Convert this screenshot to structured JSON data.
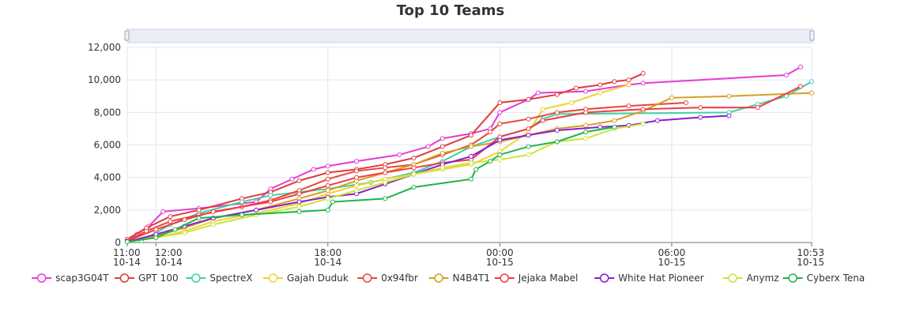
{
  "chart_data": {
    "type": "line",
    "title": "Top 10 Teams",
    "xlabel": "",
    "ylabel": "",
    "x_type": "time",
    "x_range": [
      "2024-10-14 11:00",
      "2024-10-15 10:53"
    ],
    "ylim": [
      0,
      12000
    ],
    "y_ticks": [
      0,
      2000,
      4000,
      6000,
      8000,
      10000,
      12000
    ],
    "y_tick_labels": [
      "0",
      "2,000",
      "4,000",
      "6,000",
      "8,000",
      "10,000",
      "12,000"
    ],
    "x_ticks": [
      {
        "x": "2024-10-14 11:00",
        "label1": "11:00",
        "label2": "10-14"
      },
      {
        "x": "2024-10-14 12:00",
        "label1": "12:00",
        "label2": "10-14"
      },
      {
        "x": "2024-10-14 18:00",
        "label1": "18:00",
        "label2": "10-14"
      },
      {
        "x": "2024-10-15 00:00",
        "label1": "00:00",
        "label2": "10-15"
      },
      {
        "x": "2024-10-15 06:00",
        "label1": "06:00",
        "label2": "10-15"
      },
      {
        "x": "2024-10-15 10:53",
        "label1": "10:53",
        "label2": "10-15"
      }
    ],
    "grid": true,
    "legend_position": "bottom",
    "data_zoom_slider": true,
    "series": [
      {
        "name": "scap3G04T",
        "color": "#e63cd2",
        "points": [
          [
            "2024-10-14 11:00",
            100
          ],
          [
            "2024-10-14 11:20",
            500
          ],
          [
            "2024-10-14 11:45",
            1000
          ],
          [
            "2024-10-14 12:15",
            1900
          ],
          [
            "2024-10-14 13:30",
            2100
          ],
          [
            "2024-10-14 15:30",
            2500
          ],
          [
            "2024-10-14 16:00",
            3300
          ],
          [
            "2024-10-14 16:45",
            3900
          ],
          [
            "2024-10-14 17:30",
            4500
          ],
          [
            "2024-10-14 18:00",
            4700
          ],
          [
            "2024-10-14 19:00",
            5000
          ],
          [
            "2024-10-14 20:30",
            5400
          ],
          [
            "2024-10-14 21:30",
            5900
          ],
          [
            "2024-10-14 22:00",
            6400
          ],
          [
            "2024-10-14 23:00",
            6700
          ],
          [
            "2024-10-14 23:40",
            7000
          ],
          [
            "2024-10-15 00:00",
            8000
          ],
          [
            "2024-10-15 01:00",
            8800
          ],
          [
            "2024-10-15 01:20",
            9200
          ],
          [
            "2024-10-15 03:00",
            9300
          ],
          [
            "2024-10-15 04:30",
            9700
          ],
          [
            "2024-10-15 05:00",
            9800
          ],
          [
            "2024-10-15 10:00",
            10300
          ],
          [
            "2024-10-15 10:30",
            10800
          ]
        ]
      },
      {
        "name": "GPT 100",
        "color": "#dc3c3c",
        "points": [
          [
            "2024-10-14 11:00",
            200
          ],
          [
            "2024-10-14 11:40",
            900
          ],
          [
            "2024-10-14 12:30",
            1600
          ],
          [
            "2024-10-14 13:30",
            2000
          ],
          [
            "2024-10-14 15:00",
            2700
          ],
          [
            "2024-10-14 16:00",
            3100
          ],
          [
            "2024-10-14 17:00",
            3800
          ],
          [
            "2024-10-14 18:00",
            4300
          ],
          [
            "2024-10-14 19:00",
            4500
          ],
          [
            "2024-10-14 20:00",
            4800
          ],
          [
            "2024-10-14 21:00",
            5200
          ],
          [
            "2024-10-14 22:00",
            5900
          ],
          [
            "2024-10-14 23:00",
            6600
          ],
          [
            "2024-10-15 00:00",
            8600
          ],
          [
            "2024-10-15 01:00",
            8800
          ],
          [
            "2024-10-15 02:00",
            9100
          ],
          [
            "2024-10-15 02:40",
            9500
          ],
          [
            "2024-10-15 03:30",
            9700
          ],
          [
            "2024-10-15 04:00",
            9900
          ],
          [
            "2024-10-15 04:30",
            10000
          ],
          [
            "2024-10-15 05:00",
            10400
          ]
        ]
      },
      {
        "name": "SpectreX",
        "color": "#3cd2a5",
        "points": [
          [
            "2024-10-14 11:30",
            100
          ],
          [
            "2024-10-14 12:00",
            600
          ],
          [
            "2024-10-14 12:30",
            1100
          ],
          [
            "2024-10-14 13:30",
            1800
          ],
          [
            "2024-10-14 15:00",
            2500
          ],
          [
            "2024-10-14 16:00",
            2900
          ],
          [
            "2024-10-14 17:00",
            3100
          ],
          [
            "2024-10-14 18:00",
            3300
          ],
          [
            "2024-10-14 19:30",
            3700
          ],
          [
            "2024-10-14 21:00",
            4300
          ],
          [
            "2024-10-14 22:00",
            5000
          ],
          [
            "2024-10-14 23:00",
            5900
          ],
          [
            "2024-10-15 00:00",
            6500
          ],
          [
            "2024-10-15 01:00",
            7000
          ],
          [
            "2024-10-15 01:30",
            7600
          ],
          [
            "2024-10-15 02:00",
            7900
          ],
          [
            "2024-10-15 08:00",
            8000
          ],
          [
            "2024-10-15 09:00",
            8500
          ],
          [
            "2024-10-15 10:00",
            9000
          ],
          [
            "2024-10-15 10:53",
            9900
          ]
        ]
      },
      {
        "name": "Gajah Duduk",
        "color": "#f0d232",
        "points": [
          [
            "2024-10-14 11:00",
            50
          ],
          [
            "2024-10-14 12:00",
            300
          ],
          [
            "2024-10-14 13:00",
            700
          ],
          [
            "2024-10-14 14:00",
            1300
          ],
          [
            "2024-10-14 15:30",
            1800
          ],
          [
            "2024-10-14 17:00",
            2400
          ],
          [
            "2024-10-14 18:00",
            3000
          ],
          [
            "2024-10-14 19:00",
            3500
          ],
          [
            "2024-10-14 20:00",
            3900
          ],
          [
            "2024-10-14 21:00",
            4200
          ],
          [
            "2024-10-14 22:00",
            4500
          ],
          [
            "2024-10-14 23:00",
            4800
          ],
          [
            "2024-10-15 00:00",
            5600
          ],
          [
            "2024-10-15 01:00",
            6800
          ],
          [
            "2024-10-15 01:30",
            8200
          ],
          [
            "2024-10-15 02:30",
            8600
          ],
          [
            "2024-10-15 03:30",
            9200
          ],
          [
            "2024-10-15 04:30",
            9700
          ]
        ]
      },
      {
        "name": "0x94fbr",
        "color": "#e6463c",
        "points": [
          [
            "2024-10-14 11:00",
            100
          ],
          [
            "2024-10-14 11:40",
            700
          ],
          [
            "2024-10-14 12:30",
            1300
          ],
          [
            "2024-10-14 13:30",
            1700
          ],
          [
            "2024-10-14 15:00",
            2200
          ],
          [
            "2024-10-14 16:00",
            2600
          ],
          [
            "2024-10-14 17:00",
            3200
          ],
          [
            "2024-10-14 18:00",
            3900
          ],
          [
            "2024-10-14 19:00",
            4400
          ],
          [
            "2024-10-14 20:00",
            4600
          ],
          [
            "2024-10-14 21:00",
            4800
          ],
          [
            "2024-10-14 22:00",
            5400
          ],
          [
            "2024-10-14 23:00",
            6000
          ],
          [
            "2024-10-14 23:40",
            6800
          ],
          [
            "2024-10-15 00:00",
            7300
          ],
          [
            "2024-10-15 01:00",
            7600
          ],
          [
            "2024-10-15 02:00",
            8000
          ],
          [
            "2024-10-15 03:00",
            8200
          ],
          [
            "2024-10-15 04:30",
            8400
          ],
          [
            "2024-10-15 06:30",
            8600
          ]
        ]
      },
      {
        "name": "N4B4T1",
        "color": "#d4a020",
        "points": [
          [
            "2024-10-14 11:00",
            50
          ],
          [
            "2024-10-14 12:00",
            400
          ],
          [
            "2024-10-14 13:00",
            900
          ],
          [
            "2024-10-14 14:00",
            1500
          ],
          [
            "2024-10-14 15:30",
            2000
          ],
          [
            "2024-10-14 17:00",
            2700
          ],
          [
            "2024-10-14 18:00",
            3200
          ],
          [
            "2024-10-14 19:00",
            3800
          ],
          [
            "2024-10-14 20:00",
            4300
          ],
          [
            "2024-10-14 21:00",
            4800
          ],
          [
            "2024-10-14 22:00",
            5500
          ],
          [
            "2024-10-14 23:00",
            5900
          ],
          [
            "2024-10-15 00:00",
            6200
          ],
          [
            "2024-10-15 01:00",
            6600
          ],
          [
            "2024-10-15 02:00",
            7000
          ],
          [
            "2024-10-15 03:00",
            7200
          ],
          [
            "2024-10-15 04:00",
            7500
          ],
          [
            "2024-10-15 05:00",
            8100
          ],
          [
            "2024-10-15 06:00",
            8900
          ],
          [
            "2024-10-15 08:00",
            9000
          ],
          [
            "2024-10-15 10:53",
            9200
          ]
        ]
      },
      {
        "name": "Jejaka Mabel",
        "color": "#f03c46",
        "points": [
          [
            "2024-10-14 11:00",
            100
          ],
          [
            "2024-10-14 12:00",
            800
          ],
          [
            "2024-10-14 13:00",
            1400
          ],
          [
            "2024-10-14 14:00",
            1900
          ],
          [
            "2024-10-14 16:00",
            2500
          ],
          [
            "2024-10-14 17:00",
            3000
          ],
          [
            "2024-10-14 18:00",
            3500
          ],
          [
            "2024-10-14 19:00",
            4000
          ],
          [
            "2024-10-14 20:00",
            4300
          ],
          [
            "2024-10-14 21:00",
            4600
          ],
          [
            "2024-10-14 22:00",
            4900
          ],
          [
            "2024-10-14 23:00",
            5100
          ],
          [
            "2024-10-15 00:00",
            6500
          ],
          [
            "2024-10-15 01:00",
            7000
          ],
          [
            "2024-10-15 01:30",
            7500
          ],
          [
            "2024-10-15 03:00",
            8000
          ],
          [
            "2024-10-15 05:00",
            8200
          ],
          [
            "2024-10-15 07:00",
            8300
          ],
          [
            "2024-10-15 09:00",
            8300
          ],
          [
            "2024-10-15 10:30",
            9600
          ]
        ]
      },
      {
        "name": "White Hat Pioneer",
        "color": "#8a1ecd",
        "points": [
          [
            "2024-10-14 11:00",
            50
          ],
          [
            "2024-10-14 12:00",
            500
          ],
          [
            "2024-10-14 13:00",
            1000
          ],
          [
            "2024-10-14 14:00",
            1500
          ],
          [
            "2024-10-14 15:30",
            2000
          ],
          [
            "2024-10-14 17:00",
            2500
          ],
          [
            "2024-10-14 18:00",
            2800
          ],
          [
            "2024-10-14 19:00",
            3000
          ],
          [
            "2024-10-14 20:00",
            3600
          ],
          [
            "2024-10-14 21:00",
            4200
          ],
          [
            "2024-10-14 22:00",
            4800
          ],
          [
            "2024-10-14 23:00",
            5300
          ],
          [
            "2024-10-15 00:00",
            6300
          ],
          [
            "2024-10-15 01:00",
            6600
          ],
          [
            "2024-10-15 02:00",
            6900
          ],
          [
            "2024-10-15 03:30",
            7100
          ],
          [
            "2024-10-15 04:30",
            7200
          ],
          [
            "2024-10-15 05:30",
            7500
          ],
          [
            "2024-10-15 07:00",
            7700
          ],
          [
            "2024-10-15 08:00",
            7800
          ]
        ]
      },
      {
        "name": "Anymz",
        "color": "#c8e63c",
        "points": [
          [
            "2024-10-14 11:00",
            30
          ],
          [
            "2024-10-14 12:00",
            300
          ],
          [
            "2024-10-14 13:00",
            600
          ],
          [
            "2024-10-14 14:00",
            1100
          ],
          [
            "2024-10-14 15:30",
            1700
          ],
          [
            "2024-10-14 17:00",
            2200
          ],
          [
            "2024-10-14 18:00",
            2700
          ],
          [
            "2024-10-14 19:00",
            3200
          ],
          [
            "2024-10-14 20:00",
            3700
          ],
          [
            "2024-10-14 21:00",
            4200
          ],
          [
            "2024-10-14 22:00",
            4600
          ],
          [
            "2024-10-14 23:00",
            4900
          ],
          [
            "2024-10-15 00:00",
            5100
          ],
          [
            "2024-10-15 01:00",
            5400
          ],
          [
            "2024-10-15 02:00",
            6200
          ],
          [
            "2024-10-15 03:00",
            6400
          ],
          [
            "2024-10-15 04:00",
            7000
          ],
          [
            "2024-10-15 05:00",
            7300
          ]
        ]
      },
      {
        "name": "Cyberx Tena",
        "color": "#1eb446",
        "points": [
          [
            "2024-10-14 11:00",
            50
          ],
          [
            "2024-10-14 12:00",
            300
          ],
          [
            "2024-10-14 12:40",
            800
          ],
          [
            "2024-10-14 13:30",
            1500
          ],
          [
            "2024-10-14 15:00",
            1700
          ],
          [
            "2024-10-14 17:00",
            1900
          ],
          [
            "2024-10-14 18:00",
            2000
          ],
          [
            "2024-10-14 18:10",
            2500
          ],
          [
            "2024-10-14 20:00",
            2700
          ],
          [
            "2024-10-14 21:00",
            3400
          ],
          [
            "2024-10-14 23:00",
            3900
          ],
          [
            "2024-10-14 23:10",
            4500
          ],
          [
            "2024-10-14 23:40",
            5000
          ],
          [
            "2024-10-15 00:00",
            5400
          ],
          [
            "2024-10-15 01:00",
            5900
          ],
          [
            "2024-10-15 02:00",
            6200
          ],
          [
            "2024-10-15 03:00",
            6800
          ],
          [
            "2024-10-15 04:00",
            7100
          ]
        ]
      }
    ]
  }
}
